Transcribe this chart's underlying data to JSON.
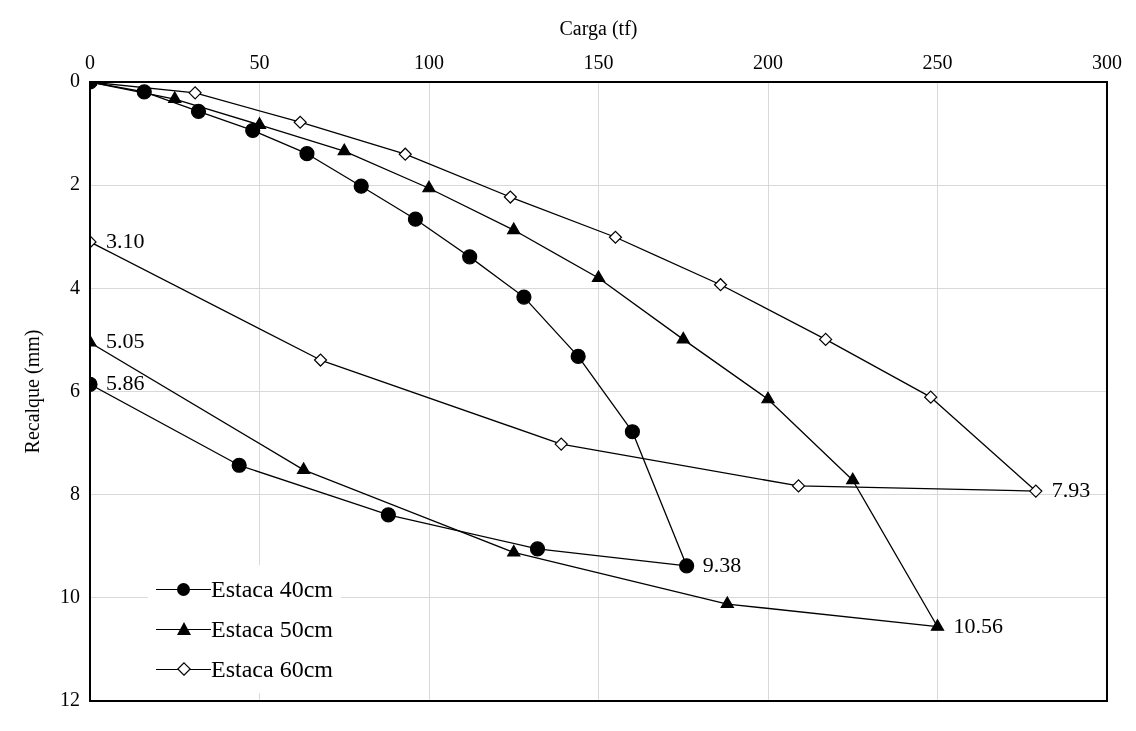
{
  "chart_data": {
    "type": "line",
    "xlabel": "Carga (tf)",
    "ylabel": "Recalque (mm)",
    "xlim": [
      0,
      300
    ],
    "xticks": [
      0,
      50,
      100,
      150,
      200,
      250,
      300
    ],
    "ylim": [
      12,
      0
    ],
    "yticks": [
      0,
      2,
      4,
      6,
      8,
      10,
      12
    ],
    "grid": true,
    "legend": "bottom left",
    "line_style": "solid",
    "series": [
      {
        "name": "Estaca 40cm",
        "color": "#000000",
        "marker": "circle",
        "x": [
          0,
          16,
          32,
          48,
          64,
          80,
          96,
          112,
          128,
          144,
          160,
          176,
          132,
          88,
          44,
          0
        ],
        "values": [
          0,
          0.19,
          0.57,
          0.94,
          1.39,
          2.02,
          2.66,
          3.39,
          4.17,
          5.32,
          6.78,
          9.38,
          9.05,
          8.39,
          7.43,
          5.86
        ],
        "value_labels": [
          null,
          null,
          null,
          null,
          null,
          null,
          null,
          null,
          null,
          null,
          null,
          "9.38",
          null,
          null,
          null,
          "5.86"
        ]
      },
      {
        "name": "Estaca 50cm",
        "color": "#000000",
        "marker": "triangle",
        "x": [
          0,
          25,
          50,
          75,
          100,
          125,
          150,
          175,
          200,
          225,
          250,
          188,
          125,
          63,
          0
        ],
        "values": [
          0,
          0.33,
          0.83,
          1.34,
          2.06,
          2.87,
          3.8,
          4.99,
          6.15,
          7.72,
          10.56,
          10.12,
          9.12,
          7.52,
          5.05
        ],
        "value_labels": [
          null,
          null,
          null,
          null,
          null,
          null,
          null,
          null,
          null,
          null,
          "10.56",
          null,
          null,
          null,
          "5.05"
        ]
      },
      {
        "name": "Estaca 60cm",
        "color": "#000000",
        "marker": "diamond",
        "x": [
          0,
          31,
          62,
          93,
          124,
          155,
          186,
          217,
          248,
          279,
          209,
          139,
          68,
          0
        ],
        "values": [
          0,
          0.21,
          0.78,
          1.4,
          2.23,
          3.01,
          3.93,
          4.99,
          6.11,
          7.93,
          7.83,
          7.02,
          5.39,
          3.1
        ],
        "value_labels": [
          null,
          null,
          null,
          null,
          null,
          null,
          null,
          null,
          null,
          "7.93",
          null,
          null,
          null,
          "3.10"
        ]
      }
    ]
  }
}
